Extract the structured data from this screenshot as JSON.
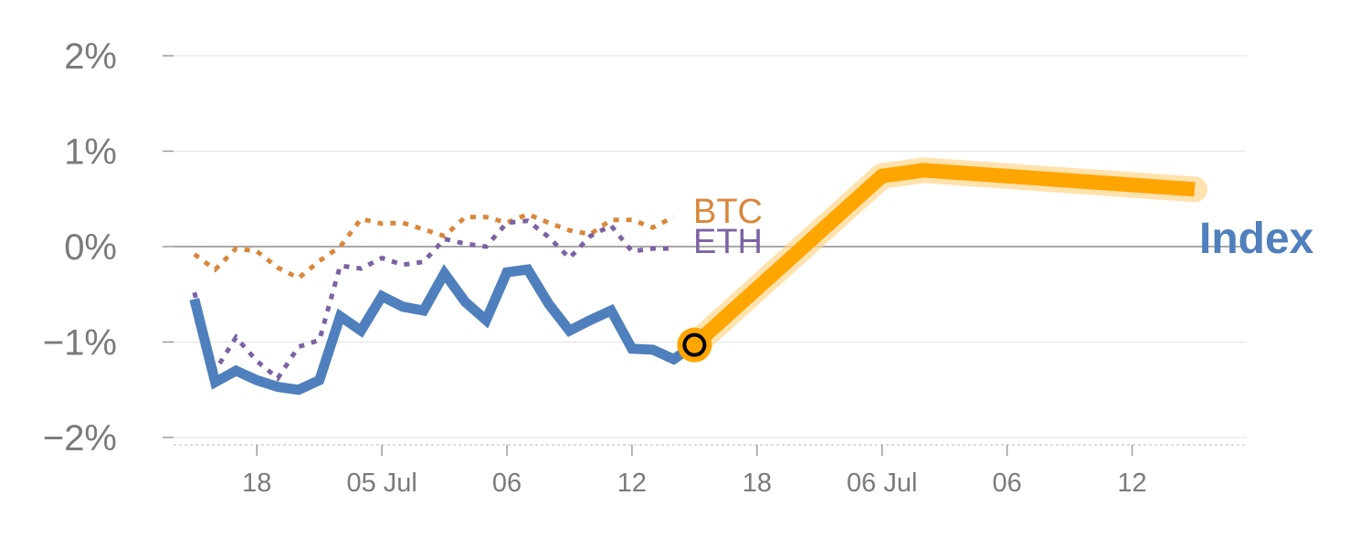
{
  "chart_data": {
    "type": "line",
    "title": "",
    "xlabel": "",
    "ylabel": "",
    "ylim": [
      -2,
      2
    ],
    "y_ticks": [
      "2%",
      "1%",
      "0%",
      "−1%",
      "−2%"
    ],
    "y_tick_values": [
      2,
      1,
      0,
      -1,
      -2
    ],
    "x_ticks": [
      "18",
      "05 Jul",
      "06",
      "12",
      "18",
      "06 Jul",
      "06",
      "12"
    ],
    "x_tick_index": [
      3,
      9,
      15,
      21,
      27,
      33,
      39,
      45
    ],
    "x_range_index": [
      -1,
      50.5
    ],
    "grid": true,
    "zero_line": true,
    "series": [
      {
        "name": "BTC",
        "color": "#d9873a",
        "style": "dotted",
        "x": [
          0,
          1,
          2,
          3,
          4,
          5,
          6,
          7,
          8,
          9,
          10,
          11,
          12,
          13,
          14,
          15,
          16,
          17,
          18,
          19,
          20,
          21,
          22,
          23
        ],
        "values": [
          -0.08,
          -0.24,
          -0.02,
          -0.05,
          -0.22,
          -0.33,
          -0.15,
          0.0,
          0.29,
          0.24,
          0.25,
          0.18,
          0.11,
          0.31,
          0.31,
          0.25,
          0.34,
          0.25,
          0.17,
          0.13,
          0.28,
          0.28,
          0.2,
          0.31
        ]
      },
      {
        "name": "ETH",
        "color": "#7b62a3",
        "style": "dotted",
        "x": [
          0,
          1,
          2,
          3,
          4,
          5,
          6,
          7,
          8,
          9,
          10,
          11,
          12,
          13,
          14,
          15,
          16,
          17,
          18,
          19,
          20,
          21,
          22,
          23
        ],
        "values": [
          -0.48,
          -1.3,
          -0.95,
          -1.2,
          -1.38,
          -1.05,
          -0.98,
          -0.2,
          -0.23,
          -0.12,
          -0.19,
          -0.16,
          0.08,
          0.03,
          0.0,
          0.25,
          0.27,
          0.1,
          -0.12,
          0.11,
          0.22,
          -0.05,
          -0.02,
          -0.02
        ]
      },
      {
        "name": "Index",
        "color": "#4f7fbd",
        "style": "solid",
        "x": [
          0,
          1,
          2,
          3,
          4,
          5,
          6,
          7,
          8,
          9,
          10,
          11,
          12,
          13,
          14,
          15,
          16,
          17,
          18,
          19,
          20,
          21,
          22,
          23,
          24
        ],
        "values": [
          -0.55,
          -1.42,
          -1.3,
          -1.4,
          -1.47,
          -1.5,
          -1.4,
          -0.73,
          -0.88,
          -0.52,
          -0.63,
          -0.67,
          -0.28,
          -0.58,
          -0.77,
          -0.27,
          -0.24,
          -0.6,
          -0.88,
          -0.77,
          -0.67,
          -1.07,
          -1.08,
          -1.18,
          -1.03
        ]
      }
    ],
    "projection": {
      "color": "#ffa500",
      "x": [
        24,
        33,
        35,
        48
      ],
      "values": [
        -1.03,
        0.74,
        0.8,
        0.6
      ]
    },
    "marker": {
      "x": 24,
      "value": -1.03
    },
    "labels": {
      "btc": "BTC",
      "eth": "ETH",
      "index": "Index"
    }
  }
}
